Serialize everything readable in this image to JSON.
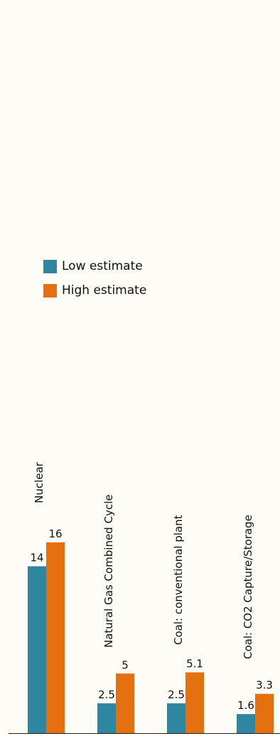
{
  "page": {
    "title": ""
  },
  "colors": {
    "low": "#2f86a0",
    "high": "#e5700f",
    "background": "#fdfcf7",
    "title": "#2a86b5"
  },
  "chart_data": {
    "type": "bar",
    "title": "",
    "xlabel": "",
    "ylabel": "",
    "ylim": [
      0,
      16
    ],
    "grid": false,
    "legend_position": "top-left",
    "categories": [
      "Nuclear",
      "Natural Gas Combined Cycle",
      "Coal: conventional plant",
      "Coal: CO2 Capture/Storage"
    ],
    "series": [
      {
        "name": "Low estimate",
        "values": [
          14,
          2.5,
          2.5,
          1.6
        ],
        "labels": [
          "14",
          "2.5",
          "2.5",
          "1.6"
        ]
      },
      {
        "name": "High estimate",
        "values": [
          16,
          5,
          5.1,
          3.3
        ],
        "labels": [
          "16",
          "5",
          "5.1",
          "3.3"
        ]
      }
    ]
  }
}
